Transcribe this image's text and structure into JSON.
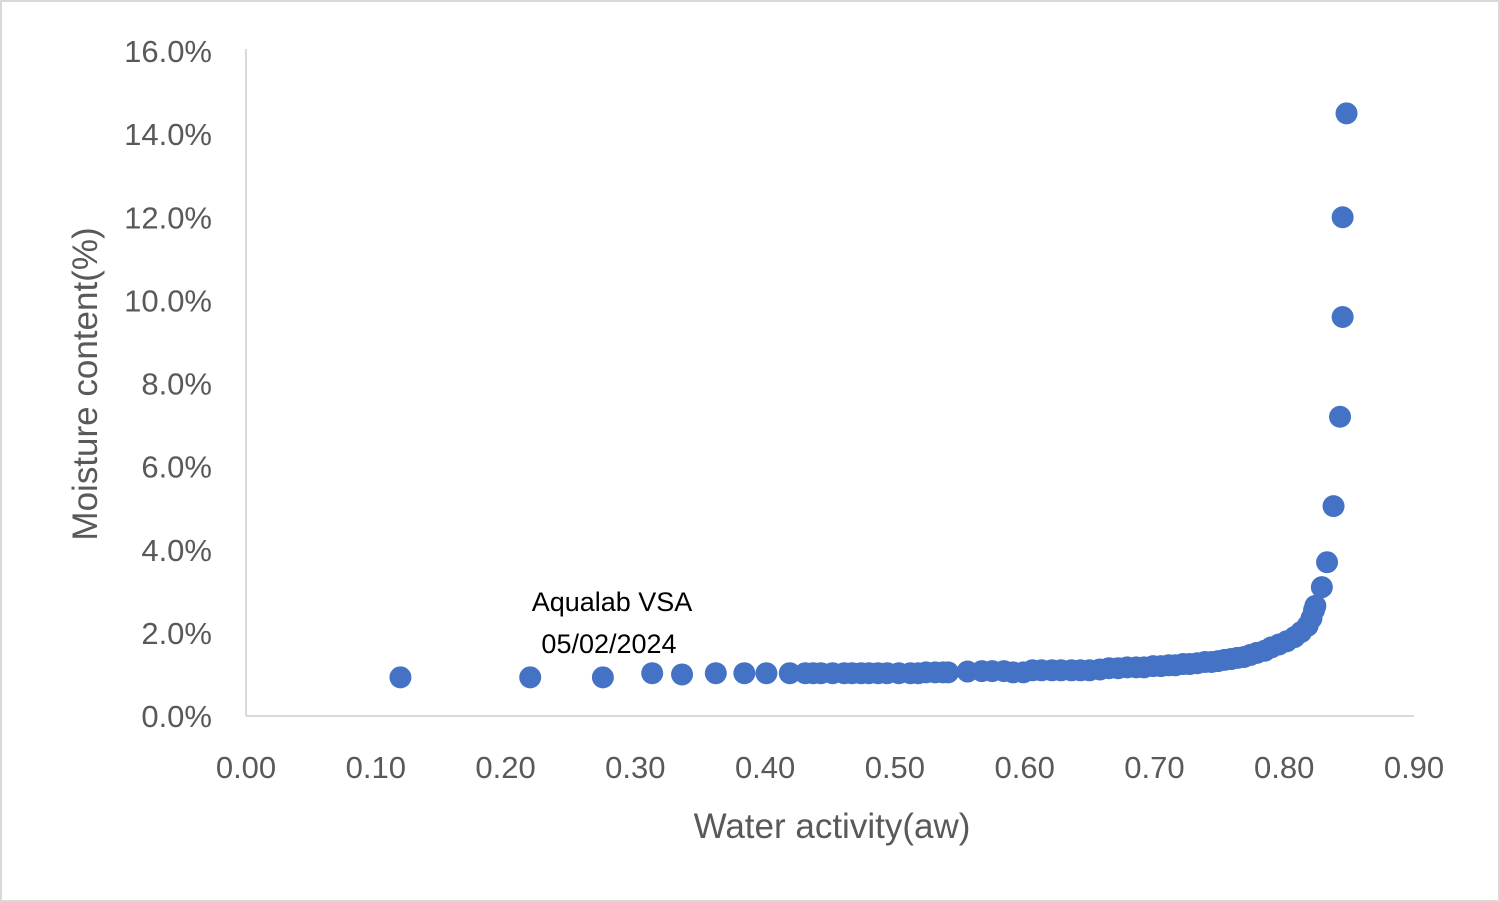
{
  "chart_data": {
    "type": "scatter",
    "title": "",
    "xlabel": "Water activity(aw)",
    "ylabel": "Moisture content(%)",
    "xlim": [
      0,
      0.9
    ],
    "ylim": [
      0,
      0.16
    ],
    "x_ticks": [
      "0.00",
      "0.10",
      "0.20",
      "0.30",
      "0.40",
      "0.50",
      "0.60",
      "0.70",
      "0.80",
      "0.90"
    ],
    "y_ticks": [
      "0.0%",
      "2.0%",
      "4.0%",
      "6.0%",
      "8.0%",
      "10.0%",
      "12.0%",
      "14.0%",
      "16.0%"
    ],
    "grid": false,
    "legend": "none",
    "annotation": [
      "Aqualab VSA",
      "05/02/2024"
    ],
    "marker_color": "#4472c4",
    "axis_color": "#d9d9d9",
    "series": [
      {
        "name": "Moisture content",
        "points": [
          [
            0.119,
            0.0093
          ],
          [
            0.219,
            0.0093
          ],
          [
            0.275,
            0.0093
          ],
          [
            0.313,
            0.0103
          ],
          [
            0.336,
            0.01
          ],
          [
            0.362,
            0.0103
          ],
          [
            0.384,
            0.0103
          ],
          [
            0.401,
            0.0103
          ],
          [
            0.419,
            0.0103
          ],
          [
            0.431,
            0.0103
          ],
          [
            0.437,
            0.0103
          ],
          [
            0.443,
            0.0103
          ],
          [
            0.452,
            0.0103
          ],
          [
            0.461,
            0.0103
          ],
          [
            0.467,
            0.0103
          ],
          [
            0.474,
            0.0103
          ],
          [
            0.48,
            0.0103
          ],
          [
            0.487,
            0.0103
          ],
          [
            0.494,
            0.0103
          ],
          [
            0.503,
            0.0103
          ],
          [
            0.512,
            0.0103
          ],
          [
            0.518,
            0.0103
          ],
          [
            0.524,
            0.0105
          ],
          [
            0.531,
            0.0105
          ],
          [
            0.537,
            0.0105
          ],
          [
            0.541,
            0.0105
          ],
          [
            0.556,
            0.0107
          ],
          [
            0.567,
            0.0108
          ],
          [
            0.575,
            0.0108
          ],
          [
            0.584,
            0.0108
          ],
          [
            0.591,
            0.0105
          ],
          [
            0.599,
            0.0105
          ],
          [
            0.606,
            0.011
          ],
          [
            0.613,
            0.011
          ],
          [
            0.621,
            0.011
          ],
          [
            0.628,
            0.011
          ],
          [
            0.636,
            0.011
          ],
          [
            0.643,
            0.011
          ],
          [
            0.65,
            0.011
          ],
          [
            0.658,
            0.0112
          ],
          [
            0.665,
            0.0115
          ],
          [
            0.672,
            0.0115
          ],
          [
            0.679,
            0.0117
          ],
          [
            0.686,
            0.0117
          ],
          [
            0.692,
            0.0117
          ],
          [
            0.699,
            0.012
          ],
          [
            0.705,
            0.012
          ],
          [
            0.711,
            0.0122
          ],
          [
            0.716,
            0.0122
          ],
          [
            0.722,
            0.0125
          ],
          [
            0.727,
            0.0125
          ],
          [
            0.733,
            0.0127
          ],
          [
            0.739,
            0.013
          ],
          [
            0.744,
            0.013
          ],
          [
            0.749,
            0.0132
          ],
          [
            0.754,
            0.0135
          ],
          [
            0.759,
            0.0137
          ],
          [
            0.764,
            0.014
          ],
          [
            0.769,
            0.0142
          ],
          [
            0.774,
            0.0147
          ],
          [
            0.779,
            0.0152
          ],
          [
            0.785,
            0.0157
          ],
          [
            0.79,
            0.0165
          ],
          [
            0.796,
            0.0172
          ],
          [
            0.802,
            0.018
          ],
          [
            0.808,
            0.019
          ],
          [
            0.813,
            0.0202
          ],
          [
            0.818,
            0.0217
          ],
          [
            0.821,
            0.0235
          ],
          [
            0.823,
            0.0255
          ],
          [
            0.824,
            0.0265
          ],
          [
            0.829,
            0.031
          ],
          [
            0.833,
            0.037
          ],
          [
            0.838,
            0.0505
          ],
          [
            0.843,
            0.072
          ],
          [
            0.845,
            0.096
          ],
          [
            0.845,
            0.12
          ],
          [
            0.848,
            0.145
          ]
        ]
      }
    ]
  }
}
